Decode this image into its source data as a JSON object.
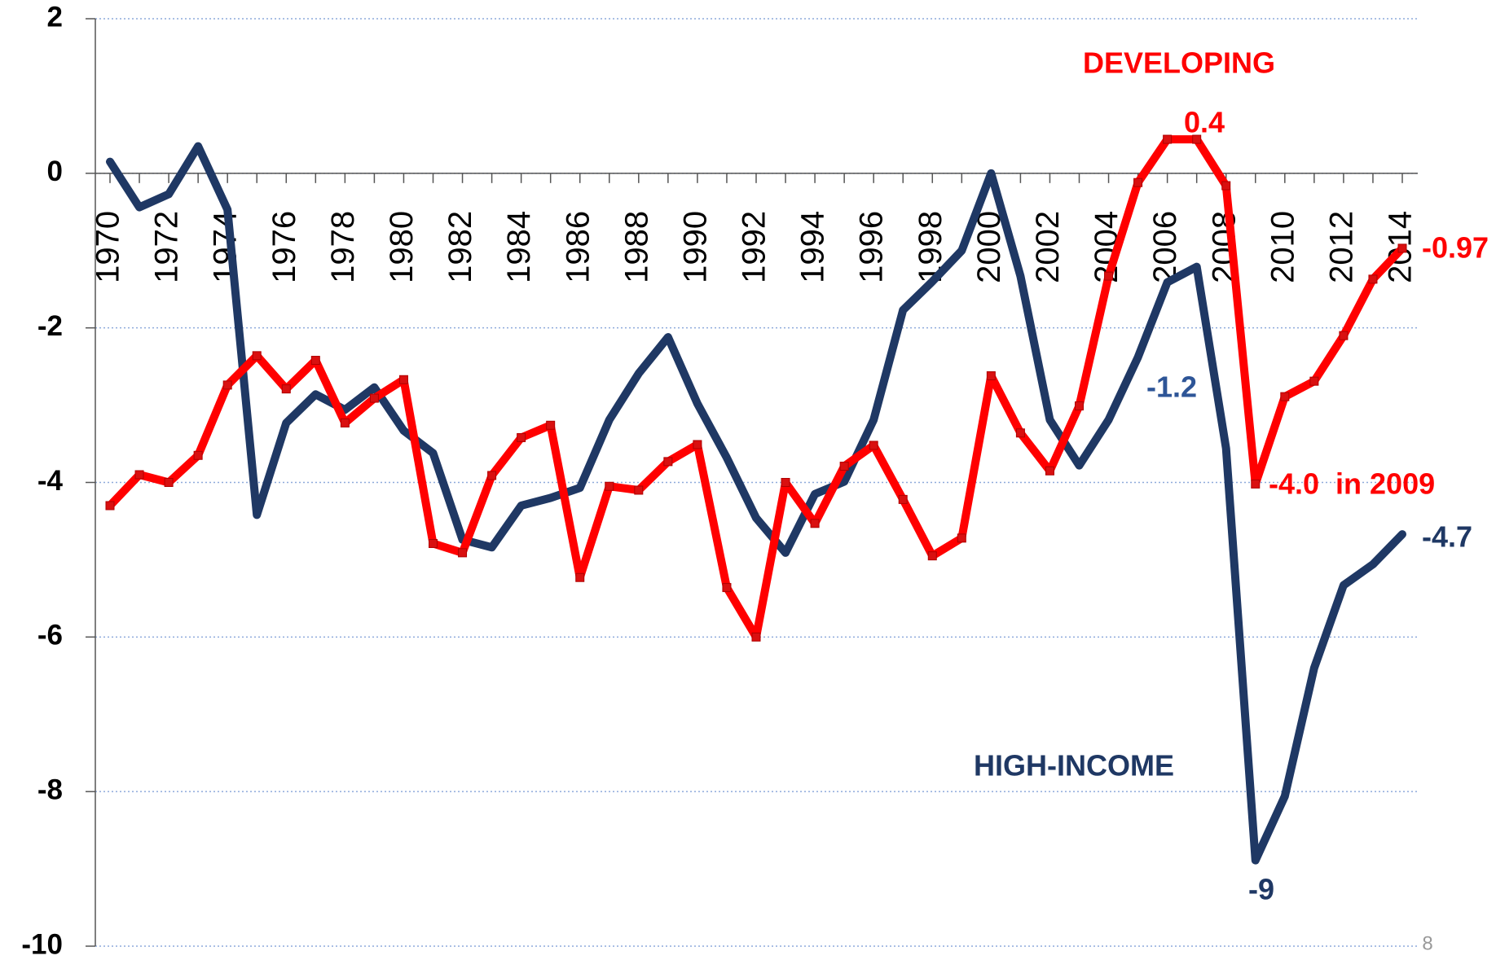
{
  "chart_data": {
    "type": "line",
    "x": [
      1970,
      1971,
      1972,
      1973,
      1974,
      1975,
      1976,
      1977,
      1978,
      1979,
      1980,
      1981,
      1982,
      1983,
      1984,
      1985,
      1986,
      1987,
      1988,
      1989,
      1990,
      1991,
      1992,
      1993,
      1994,
      1995,
      1996,
      1997,
      1998,
      1999,
      2000,
      2001,
      2002,
      2003,
      2004,
      2005,
      2006,
      2007,
      2008,
      2009,
      2010,
      2011,
      2012,
      2013,
      2014
    ],
    "xticks": [
      1970,
      1972,
      1974,
      1976,
      1978,
      1980,
      1982,
      1984,
      1986,
      1988,
      1990,
      1992,
      1994,
      1996,
      1998,
      2000,
      2002,
      2004,
      2006,
      2008,
      2010,
      2012,
      2014
    ],
    "xlim": [
      1970,
      2014
    ],
    "ylim": [
      -10,
      2
    ],
    "yticks": [
      -10,
      -8,
      -6,
      -4,
      -2,
      0,
      2
    ],
    "grid": true,
    "series": [
      {
        "name": "HIGH-INCOME",
        "color": "#1f3864",
        "markers": false,
        "values": [
          0.15,
          -0.44,
          -0.27,
          0.35,
          -0.47,
          -4.42,
          -3.23,
          -2.86,
          -3.06,
          -2.77,
          -3.33,
          -3.62,
          -4.74,
          -4.84,
          -4.3,
          -4.2,
          -4.07,
          -3.19,
          -2.59,
          -2.12,
          -2.98,
          -3.68,
          -4.46,
          -4.91,
          -4.15,
          -3.99,
          -3.19,
          -1.77,
          -1.4,
          -1.0,
          0.0,
          -1.33,
          -3.19,
          -3.78,
          -3.19,
          -2.38,
          -1.41,
          -1.21,
          -3.56,
          -8.89,
          -8.06,
          -6.4,
          -5.33,
          -5.06,
          -4.67
        ]
      },
      {
        "name": "DEVELOPING",
        "color": "#ff0000",
        "markers": true,
        "values": [
          -4.3,
          -3.9,
          -4.0,
          -3.65,
          -2.74,
          -2.36,
          -2.79,
          -2.42,
          -3.23,
          -2.91,
          -2.67,
          -4.79,
          -4.91,
          -3.91,
          -3.42,
          -3.26,
          -5.23,
          -4.05,
          -4.1,
          -3.73,
          -3.51,
          -5.36,
          -6.0,
          -4.0,
          -4.53,
          -3.79,
          -3.52,
          -4.22,
          -4.95,
          -4.72,
          -2.62,
          -3.36,
          -3.85,
          -3.01,
          -1.33,
          -0.12,
          0.44,
          0.44,
          -0.16,
          -4.02,
          -2.89,
          -2.69,
          -2.1,
          -1.37,
          -0.97
        ]
      }
    ],
    "annotations": [
      {
        "text": "DEVELOPING",
        "color": "#ff0000"
      },
      {
        "text": "0.4",
        "color": "#ff0000"
      },
      {
        "text": "-0.97",
        "color": "#ff0000"
      },
      {
        "text": "-1.2",
        "color": "#2e5597"
      },
      {
        "text": "-4.0  in 2009",
        "color": "#ff0000"
      },
      {
        "text": "-4.7",
        "color": "#1f3864"
      },
      {
        "text": "HIGH-INCOME",
        "color": "#1f3864"
      },
      {
        "text": "-9",
        "color": "#1f3864"
      }
    ],
    "page_number": "8"
  }
}
